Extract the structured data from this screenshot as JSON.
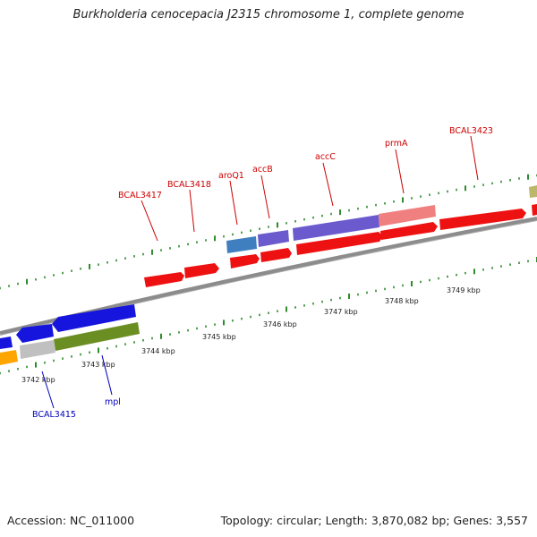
{
  "title": "Burkholderia cenocepacia J2315 chromosome 1, complete genome",
  "accession": "Accession: NC_011000",
  "summary": "Topology: circular; Length: 3,870,082 bp; Genes: 3,557",
  "colors": {
    "backbone": "#8c8c8c",
    "label_forward": "#cc0000",
    "label_reverse": "#0000bb",
    "tick": "#2e8b2e"
  },
  "kbp_labels": [
    "3742 kbp",
    "3743 kbp",
    "3744 kbp",
    "3745 kbp",
    "3746 kbp",
    "3747 kbp",
    "3748 kbp",
    "3749 kbp"
  ],
  "genes_forward": [
    {
      "name": "BCAL3417",
      "color": "#ee1111"
    },
    {
      "name": "BCAL3418",
      "color": "#ee1111"
    },
    {
      "name": "aroQ1",
      "color": "#ee1111"
    },
    {
      "name": "accB",
      "color": "#ee1111"
    },
    {
      "name": "accC",
      "color": "#ee1111"
    },
    {
      "name": "prmA",
      "color": "#ee1111"
    },
    {
      "name": "BCAL3423",
      "color": "#ee1111"
    }
  ],
  "genes_reverse": [
    {
      "name": "BCAL3415",
      "color": "#1515dd"
    },
    {
      "name": "mpl",
      "color": "#1515dd"
    }
  ],
  "features": [
    {
      "name": "cds-aroQ1",
      "color": "#3f7fbf"
    },
    {
      "name": "cds-accB",
      "color": "#6a5acd"
    },
    {
      "name": "cds-accC",
      "color": "#6a5acd"
    },
    {
      "name": "cds-prmA",
      "color": "#f08080"
    },
    {
      "name": "cds-mpl",
      "color": "#6b8e23"
    },
    {
      "name": "cds-grey",
      "color": "#c0c0c0"
    },
    {
      "name": "cds-orange",
      "color": "#ffa500"
    },
    {
      "name": "cds-olive",
      "color": "#bdb76b"
    }
  ]
}
